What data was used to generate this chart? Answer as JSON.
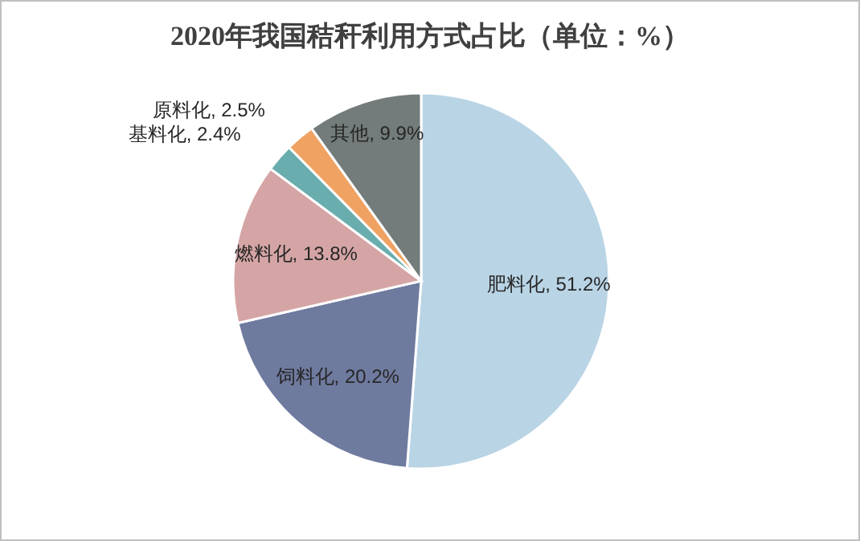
{
  "chart_data": {
    "type": "pie",
    "title": "2020年我国秸秆利用方式占比（单位：%）",
    "categories": [
      "肥料化",
      "饲料化",
      "燃料化",
      "基料化",
      "原料化",
      "其他"
    ],
    "values": [
      51.2,
      20.2,
      13.8,
      2.4,
      2.5,
      9.9
    ],
    "colors": [
      "#b9d4e5",
      "#6f7a9f",
      "#d5a5a5",
      "#6aadae",
      "#f0a262",
      "#737c7a"
    ],
    "value_labels": [
      "51.2%",
      "20.2%",
      "13.8%",
      "2.4%",
      "2.5%",
      "9.9%"
    ],
    "legend": false
  }
}
